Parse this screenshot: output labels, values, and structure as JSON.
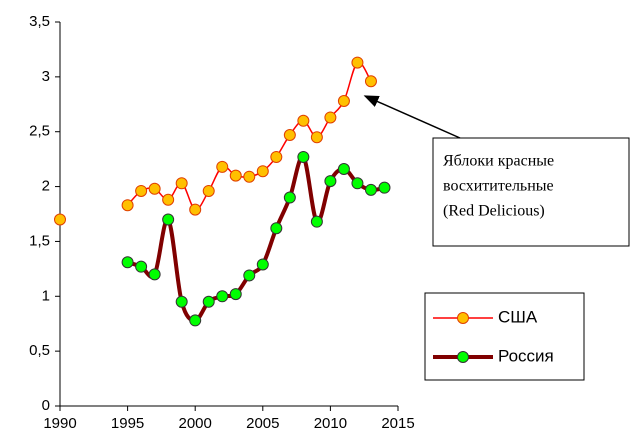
{
  "chart_data": {
    "type": "line",
    "x": [
      1990,
      1991,
      1992,
      1993,
      1994,
      1995,
      1996,
      1997,
      1998,
      1999,
      2000,
      2001,
      2002,
      2003,
      2004,
      2005,
      2006,
      2007,
      2008,
      2009,
      2010,
      2011,
      2012,
      2013,
      2014
    ],
    "series": [
      {
        "name": "США",
        "color": "#ff0000",
        "marker_color": "#ffc000",
        "line_width": 1.5,
        "values": [
          1.7,
          null,
          null,
          null,
          null,
          1.83,
          1.96,
          1.98,
          1.88,
          2.03,
          1.79,
          1.96,
          2.18,
          2.1,
          2.09,
          2.14,
          2.27,
          2.47,
          2.6,
          2.45,
          2.63,
          2.78,
          3.13,
          2.96,
          null
        ]
      },
      {
        "name": "Россия",
        "color": "#800000",
        "marker_color": "#00ff00",
        "line_width": 4,
        "values": [
          null,
          null,
          null,
          null,
          null,
          1.31,
          1.27,
          1.2,
          1.7,
          0.95,
          0.78,
          0.95,
          1.0,
          1.02,
          1.19,
          1.29,
          1.62,
          1.9,
          2.27,
          1.68,
          2.05,
          2.16,
          2.03,
          1.97,
          1.99
        ]
      }
    ],
    "xlim": [
      1990,
      2015
    ],
    "xticks": [
      1990,
      1995,
      2000,
      2005,
      2010,
      2015
    ],
    "ylim": [
      0,
      3.5
    ],
    "yticks": [
      0,
      {
        "value": 0.5,
        "label": "0,5"
      },
      1,
      {
        "value": 1.5,
        "label": "1,5"
      },
      2,
      {
        "value": 2.5,
        "label": "2,5"
      },
      3,
      {
        "value": 3.5,
        "label": "3,5"
      }
    ],
    "grid": false,
    "smooth": true,
    "legend": "right",
    "annotation": {
      "lines": [
        "Яблоки красные",
        "восхитительные",
        "(Red Delicious)"
      ]
    }
  }
}
